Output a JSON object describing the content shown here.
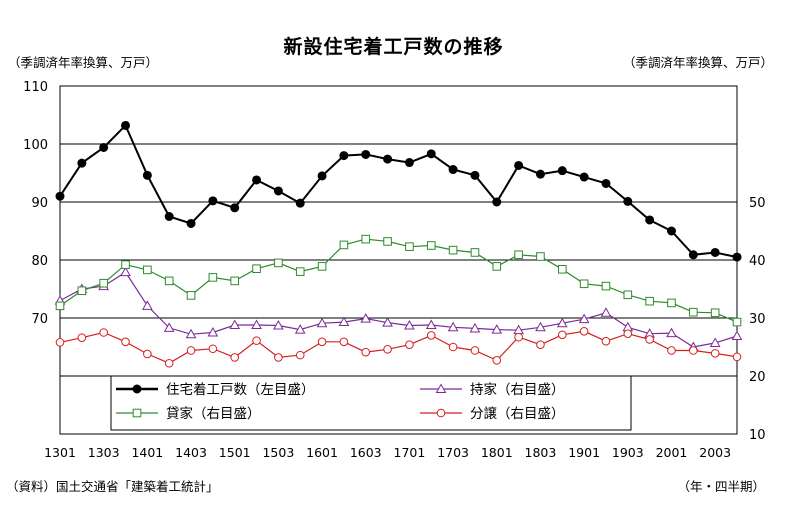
{
  "chart_data": {
    "type": "line",
    "title": "新設住宅着工戸数の推移",
    "unit_left": "（季調済年率換算、万戸）",
    "unit_right": "（季調済年率換算、万戸）",
    "source": "（資料）国土交通省「建築着工統計」",
    "period_label": "（年・四半期）",
    "x": [
      "1301",
      "1302",
      "1303",
      "1304",
      "1401",
      "1402",
      "1403",
      "1404",
      "1501",
      "1502",
      "1503",
      "1504",
      "1601",
      "1602",
      "1603",
      "1604",
      "1701",
      "1702",
      "1703",
      "1704",
      "1801",
      "1802",
      "1803",
      "1804",
      "1901",
      "1902",
      "1903",
      "1904",
      "2001",
      "2002",
      "2003",
      "2004"
    ],
    "x_tick_labels": [
      "1301",
      "1303",
      "1401",
      "1403",
      "1501",
      "1503",
      "1601",
      "1603",
      "1701",
      "1703",
      "1801",
      "1803",
      "1901",
      "1903",
      "2001",
      "2003"
    ],
    "y_left": {
      "min": 50,
      "max": 110,
      "ticks": [
        70,
        80,
        90,
        100,
        110
      ]
    },
    "y_right": {
      "min": 10,
      "max": 70,
      "ticks": [
        10,
        20,
        30,
        40,
        50
      ]
    },
    "grid": true,
    "legend_position": "bottom",
    "series": [
      {
        "name": "住宅着工戸数（左目盛）",
        "axis": "left",
        "marker": "filled-circle",
        "color": "#000000",
        "values": [
          91.0,
          96.7,
          99.4,
          103.2,
          94.6,
          87.5,
          86.3,
          90.2,
          89.0,
          93.8,
          91.9,
          89.8,
          94.5,
          98.0,
          98.2,
          97.4,
          96.8,
          98.3,
          95.6,
          94.6,
          90.0,
          96.3,
          94.8,
          95.4,
          94.3,
          93.2,
          90.1,
          86.9,
          85.0,
          80.9,
          81.3,
          80.5
        ]
      },
      {
        "name": "持家（右目盛）",
        "axis": "right",
        "marker": "open-triangle",
        "color": "#7a2c96",
        "values": [
          33.0,
          35.0,
          35.5,
          37.9,
          32.1,
          28.3,
          27.2,
          27.5,
          28.8,
          28.8,
          28.7,
          28.0,
          29.1,
          29.3,
          29.9,
          29.2,
          28.7,
          28.8,
          28.4,
          28.2,
          28.0,
          27.9,
          28.4,
          29.1,
          29.8,
          30.9,
          28.4,
          27.3,
          27.4,
          25.0,
          25.7,
          26.9
        ]
      },
      {
        "name": "貸家（右目盛）",
        "axis": "right",
        "marker": "open-square",
        "color": "#2e8b2e",
        "values": [
          32.1,
          34.7,
          36.0,
          39.2,
          38.3,
          36.4,
          33.9,
          37.0,
          36.4,
          38.5,
          39.5,
          38.0,
          38.9,
          42.6,
          43.6,
          43.2,
          42.3,
          42.5,
          41.7,
          41.3,
          38.9,
          40.9,
          40.6,
          38.4,
          35.9,
          35.5,
          34.0,
          32.9,
          32.6,
          31.0,
          30.9,
          29.3
        ]
      },
      {
        "name": "分譲（右目盛）",
        "axis": "right",
        "marker": "open-circle",
        "color": "#d62020",
        "values": [
          25.8,
          26.6,
          27.5,
          25.9,
          23.8,
          22.2,
          24.4,
          24.7,
          23.2,
          26.1,
          23.2,
          23.6,
          25.9,
          25.9,
          24.1,
          24.6,
          25.4,
          27.0,
          25.0,
          24.4,
          22.7,
          26.7,
          25.4,
          27.1,
          27.7,
          26.0,
          27.3,
          26.3,
          24.4,
          24.4,
          23.9,
          23.3
        ]
      }
    ]
  }
}
